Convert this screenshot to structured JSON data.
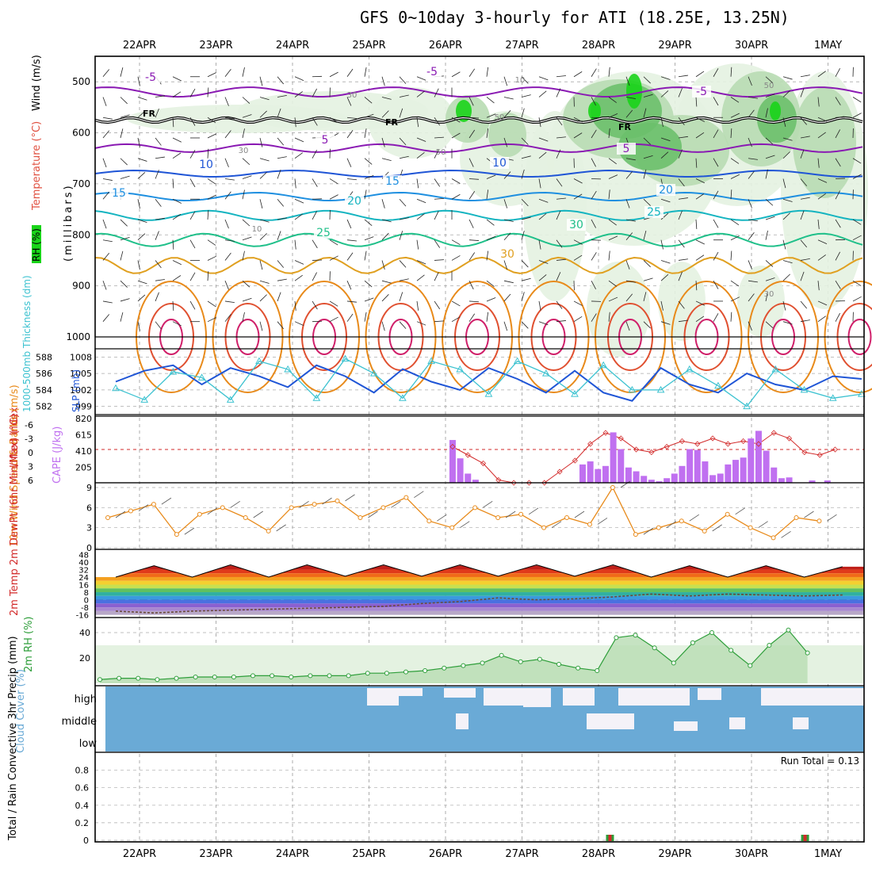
{
  "title": "GFS 0~10day 3-hourly for ATI (18.25E, 13.25N)",
  "colors": {
    "purple": "#8a1ab3",
    "blue": "#1f55d6",
    "cyan": "#3cc2d0",
    "green_rh": "#2e9e3a",
    "orange": "#e88a1a",
    "red": "#d22a2a",
    "cape": "#c070f0",
    "cloud": "#6aaad6",
    "rh_light": "#e4f2e1",
    "rh_mid": "#b8dcb3",
    "rh_dark": "#6bc06b",
    "rh_bright": "#19d419"
  },
  "chart_data": [
    {
      "type": "heatmap",
      "panel": "upper-air",
      "x_dates": [
        "22APR",
        "23APR",
        "24APR",
        "25APR",
        "26APR",
        "27APR",
        "28APR",
        "29APR",
        "30APR",
        "1MAY"
      ],
      "ylabel_parts": [
        "RH (%)",
        "Temperature (°C)",
        "Wind (m/s)",
        "(millibars)"
      ],
      "yticks": [
        "500",
        "600",
        "700",
        "800",
        "900",
        "1000"
      ],
      "ylim": [
        1000,
        450
      ],
      "isotherm_labels": [
        "-5",
        "-5",
        "-5",
        "5",
        "5",
        "10",
        "10",
        "15",
        "15",
        "20",
        "20",
        "25",
        "25",
        "30",
        "30"
      ],
      "freezing_labels": [
        "FR",
        "FR",
        "FR"
      ],
      "rh_contour_labels": [
        "30",
        "30",
        "50",
        "50",
        "50",
        "30",
        "10",
        "10"
      ]
    },
    {
      "type": "line",
      "panel": "thickness-slp",
      "ylabel_left": "1000-500mb Thickness (dm)",
      "ylabel_right": "SLP (mb)",
      "yticks_left": [
        "588",
        "586",
        "584",
        "582"
      ],
      "yticks_right": [
        "1008",
        "1005",
        "1002",
        "999"
      ],
      "x_days": [
        0,
        0.375,
        0.75,
        1.125,
        1.5,
        1.875,
        2.25,
        2.625,
        3.0,
        3.375,
        3.75,
        4.125,
        4.5,
        4.875,
        5.25,
        5.625,
        6.0,
        6.375,
        6.75,
        7.125,
        7.5,
        7.875,
        8.25,
        8.625,
        9.0,
        9.375,
        9.75
      ],
      "series": [
        {
          "name": "SLP",
          "axis": "right",
          "values": [
            1003.5,
            1005.5,
            1006.5,
            1003.0,
            1006.0,
            1004.5,
            1002.5,
            1006.5,
            1004.5,
            1001.5,
            1005.8,
            1003.5,
            1002.0,
            1006.0,
            1004.0,
            1001.5,
            1005.5,
            1001.5,
            1000.0,
            1006.0,
            1003.0,
            1001.5,
            1005.0,
            1003.0,
            1002.0,
            1004.5,
            1004.0
          ]
        },
        {
          "name": "Thickness",
          "axis": "left",
          "values": [
            584.2,
            582.8,
            586.2,
            585.5,
            582.8,
            587.5,
            586.5,
            583.0,
            587.8,
            586.0,
            583.0,
            587.5,
            586.5,
            583.5,
            587.5,
            586.0,
            583.5,
            587.0,
            584.0,
            584.0,
            586.5,
            584.5,
            582.0,
            586.5,
            584.0,
            583.0,
            583.5
          ]
        }
      ]
    },
    {
      "type": "bar",
      "panel": "cape-li",
      "ylabel_left": "Lifted Index",
      "ylabel_right": "CAPE (J/kg)",
      "yticks_left": [
        "-6",
        "-3",
        "0",
        "3",
        "6"
      ],
      "yticks_right": [
        "820",
        "615",
        "410",
        "205"
      ],
      "cape_x_days": [
        4.3,
        4.4,
        4.5,
        4.6,
        6.0,
        6.1,
        6.2,
        6.3,
        6.4,
        6.5,
        6.6,
        6.7,
        6.8,
        6.9,
        7.0,
        7.1,
        7.2,
        7.3,
        7.4,
        7.5,
        7.6,
        7.7,
        7.8,
        7.9,
        8.0,
        8.1,
        8.2,
        8.3,
        8.4,
        8.5,
        8.6,
        8.7,
        8.8,
        8.9,
        9.0,
        9.1,
        9.2
      ],
      "cape_values": [
        560,
        320,
        120,
        40,
        240,
        280,
        180,
        220,
        660,
        440,
        200,
        150,
        90,
        40,
        20,
        60,
        120,
        220,
        440,
        430,
        280,
        100,
        120,
        240,
        300,
        330,
        580,
        680,
        420,
        200,
        60,
        70,
        0,
        0,
        30,
        0,
        30
      ],
      "li_x_days": [
        4.3,
        4.5,
        4.7,
        4.9,
        5.1,
        5.3,
        5.5,
        5.7,
        5.9,
        6.1,
        6.3,
        6.5,
        6.7,
        6.9,
        7.1,
        7.3,
        7.5,
        7.7,
        7.9,
        8.1,
        8.3,
        8.5,
        8.7,
        8.9,
        9.1,
        9.3
      ],
      "li_values": [
        -0.5,
        1.0,
        2.5,
        5.5,
        6.0,
        6.0,
        6.0,
        4.0,
        2.0,
        -1.0,
        -3.0,
        -2.0,
        0.0,
        0.5,
        -0.5,
        -1.5,
        -1.0,
        -2.0,
        -1.0,
        -1.5,
        -1.0,
        -3.0,
        -2.0,
        0.5,
        1.0,
        0.0
      ]
    },
    {
      "type": "line",
      "panel": "wind-10m",
      "ylabel": "10m Wind Speed & Barbs (m/s)",
      "yticks": [
        "9",
        "6",
        "3",
        "0"
      ],
      "ylim": [
        0,
        9
      ],
      "x_days": [
        0,
        0.3,
        0.6,
        0.9,
        1.2,
        1.5,
        1.8,
        2.1,
        2.4,
        2.7,
        3.0,
        3.3,
        3.6,
        3.9,
        4.2,
        4.5,
        4.8,
        5.1,
        5.4,
        5.7,
        6.0,
        6.3,
        6.6,
        6.9,
        7.2,
        7.5,
        7.8,
        8.1,
        8.4,
        8.7,
        9.0,
        9.3
      ],
      "values": [
        4.5,
        5.5,
        6.5,
        2.0,
        5.0,
        6.0,
        4.5,
        2.5,
        6.0,
        6.5,
        7.0,
        4.5,
        6.0,
        7.5,
        4.0,
        3.0,
        6.0,
        4.5,
        5.0,
        3.0,
        4.5,
        3.5,
        9.0,
        2.0,
        3.0,
        4.0,
        2.5,
        5.0,
        3.0,
        1.5,
        4.5,
        4.0
      ]
    },
    {
      "type": "line",
      "panel": "temp-2m",
      "ylabel": "2m Temp 2m DewPt (6hr Min/Max) (°C)",
      "yticks": [
        "48",
        "40",
        "32",
        "24",
        "16",
        "8",
        "0",
        "-8",
        "-16"
      ],
      "ylim": [
        -16,
        48
      ],
      "x_days": [
        0,
        0.5,
        1,
        1.5,
        2,
        2.5,
        3,
        3.5,
        4,
        4.5,
        5,
        5.5,
        6,
        6.5,
        7,
        7.5,
        8,
        8.5,
        9,
        9.5
      ],
      "series": [
        {
          "name": "2m Temp",
          "values": [
            24,
            36,
            24,
            37,
            24,
            37,
            25,
            37,
            25,
            37,
            25,
            37,
            25,
            37,
            24,
            36,
            24,
            36,
            24,
            35
          ]
        },
        {
          "name": "2m DewPt",
          "values": [
            -12,
            -14,
            -12,
            -11,
            -10,
            -9,
            -8,
            -7,
            -4,
            -2,
            2,
            0,
            1,
            3,
            6,
            4,
            6,
            5,
            4,
            5
          ]
        }
      ]
    },
    {
      "type": "area",
      "panel": "rh-2m",
      "ylabel": "2m RH (%)",
      "yticks": [
        "40",
        "20"
      ],
      "ylim": [
        0,
        50
      ],
      "x_days": [
        0,
        0.25,
        0.5,
        0.75,
        1.0,
        1.25,
        1.5,
        1.75,
        2.0,
        2.25,
        2.5,
        2.75,
        3.0,
        3.25,
        3.5,
        3.75,
        4.0,
        4.25,
        4.5,
        4.75,
        5.0,
        5.25,
        5.5,
        5.75,
        6.0,
        6.25,
        6.5,
        6.75,
        7.0,
        7.25,
        7.5,
        7.75,
        8.0,
        8.25,
        8.5,
        8.75,
        9.0,
        9.25
      ],
      "values": [
        3,
        4,
        4,
        3,
        4,
        5,
        5,
        5,
        6,
        6,
        5,
        6,
        6,
        6,
        8,
        8,
        9,
        10,
        12,
        14,
        16,
        22,
        17,
        19,
        15,
        12,
        10,
        36,
        38,
        28,
        16,
        32,
        40,
        26,
        14,
        30,
        42,
        24
      ]
    },
    {
      "type": "bar",
      "panel": "cloud-cover",
      "ylabel": "Cloud Cover (%)",
      "levels": [
        "high",
        "middle",
        "low"
      ]
    },
    {
      "type": "bar",
      "panel": "precip",
      "ylabel": "Total / Rain Convective 3hr Precip (mm)",
      "yticks": [
        "0.8",
        "0.6",
        "0.4",
        "0.2",
        "0"
      ],
      "ylim": [
        0,
        0.95
      ],
      "x_days": [
        6.15,
        8.7
      ],
      "values": [
        0.01,
        0.01
      ],
      "annotation": "Run Total = 0.13"
    }
  ]
}
